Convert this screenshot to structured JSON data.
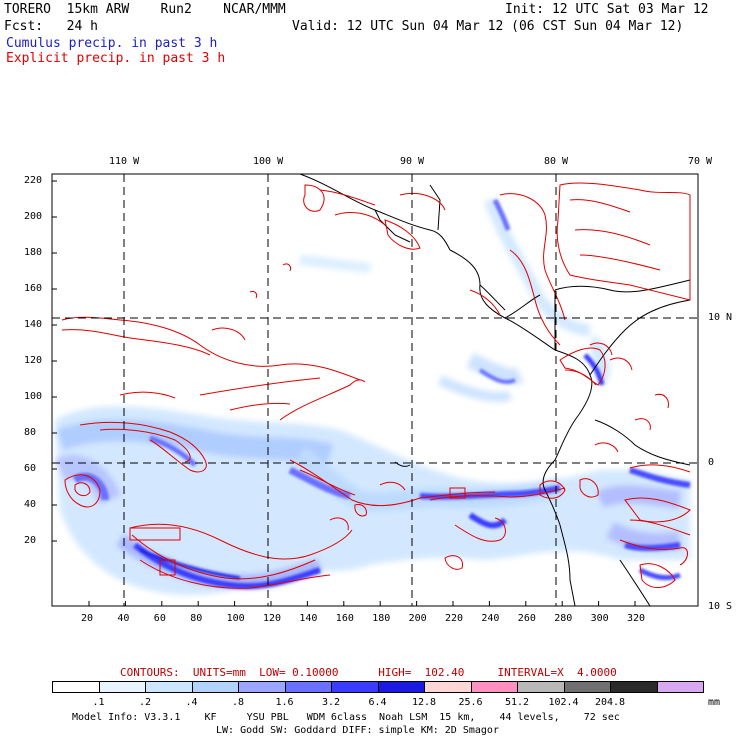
{
  "header": {
    "model": "TORERO  15km ARW    Run2    NCAR/MMM",
    "init": "Init: 12 UTC Sat 03 Mar 12",
    "fcst": "Fcst:   24 h",
    "valid": "Valid: 12 UTC Sun 04 Mar 12 (06 CST Sun 04 Mar 12)",
    "cumulus": "Cumulus precip. in past 3 h",
    "explicit": "Explicit precip. in past 3 h"
  },
  "map": {
    "top_lon_labels": [
      "110 W",
      "100 W",
      "90 W",
      "80 W",
      "70 W"
    ],
    "right_lat_labels": [
      "10 N",
      "0",
      "10 S"
    ],
    "y_ticks": [
      "220",
      "200",
      "180",
      "160",
      "140",
      "120",
      "100",
      "80",
      "60",
      "40",
      "20"
    ],
    "x_ticks": [
      "20",
      "40",
      "60",
      "80",
      "100",
      "120",
      "140",
      "160",
      "180",
      "200",
      "220",
      "240",
      "260",
      "280",
      "300",
      "320"
    ]
  },
  "legend": {
    "contours": "CONTOURS:  UNITS=mm  LOW= 0.10000      HIGH=  102.40     INTERVAL=X  4.0000",
    "unit": "mm",
    "colors": [
      "#ffffff",
      "#e8f4ff",
      "#cde6ff",
      "#b0d4ff",
      "#9aa6ff",
      "#6a70ff",
      "#3a3cff",
      "#1a1ae0",
      "#ffd6d6",
      "#ff90c0",
      "#b8b8b8",
      "#707070",
      "#2a2a2a",
      "#d8a8f0"
    ],
    "labels": [
      ".1",
      ".2",
      ".4",
      ".8",
      "1.6",
      "3.2",
      "6.4",
      "12.8",
      "25.6",
      "51.2",
      "102.4",
      "204.8"
    ]
  },
  "footer": {
    "line1": "Model Info: V3.3.1    KF     YSU PBL   WDM 6class  Noah LSM  15 km,    44 levels,    72 sec",
    "line2": "LW: Godd SW: Goddard DIFF: simple KM: 2D Smagor"
  }
}
